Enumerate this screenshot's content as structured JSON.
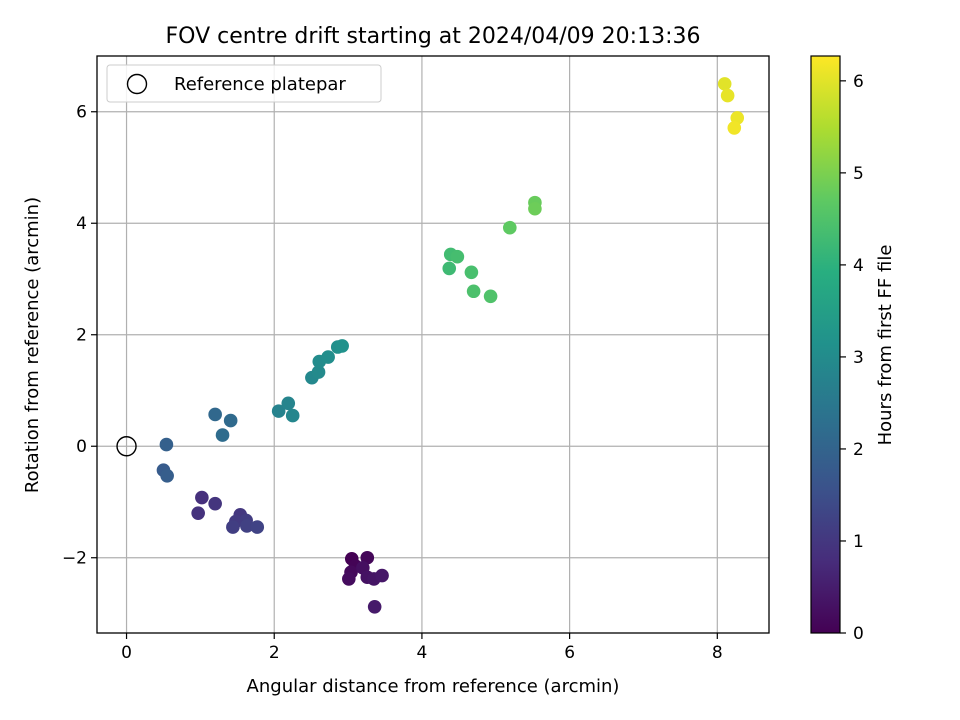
{
  "chart_data": {
    "type": "scatter",
    "title": "FOV centre drift starting at 2024/04/09 20:13:36",
    "xlabel": "Angular distance from reference (arcmin)",
    "ylabel": "Rotation from reference (arcmin)",
    "xlim": [
      -0.4,
      8.7
    ],
    "ylim": [
      -3.35,
      7.0
    ],
    "xticks": [
      "0",
      "2",
      "4",
      "6",
      "8"
    ],
    "xtick_values": [
      0,
      2,
      4,
      6,
      8
    ],
    "yticks": [
      "−2",
      "0",
      "2",
      "4",
      "6"
    ],
    "ytick_values": [
      -2,
      0,
      2,
      4,
      6
    ],
    "grid": true,
    "legend": {
      "placement": "top-left",
      "label": "Reference platepar"
    },
    "reference_point": {
      "x": 0,
      "y": 0
    },
    "colorbar": {
      "label": "Hours from first FF file",
      "range": [
        0,
        6.27
      ],
      "ticks": [
        "0",
        "1",
        "2",
        "3",
        "4",
        "5",
        "6"
      ],
      "tick_values": [
        0,
        1,
        2,
        3,
        4,
        5,
        6
      ],
      "colormap": "viridis"
    },
    "points": [
      {
        "x": 3.05,
        "y": -2.02,
        "c": 0.0
      },
      {
        "x": 3.1,
        "y": -2.15,
        "c": 0.05
      },
      {
        "x": 3.26,
        "y": -2.0,
        "c": 0.1
      },
      {
        "x": 3.04,
        "y": -2.26,
        "c": 0.15
      },
      {
        "x": 3.01,
        "y": -2.38,
        "c": 0.2
      },
      {
        "x": 3.2,
        "y": -2.18,
        "c": 0.25
      },
      {
        "x": 3.26,
        "y": -2.35,
        "c": 0.3
      },
      {
        "x": 3.35,
        "y": -2.38,
        "c": 0.35
      },
      {
        "x": 3.46,
        "y": -2.32,
        "c": 0.4
      },
      {
        "x": 3.36,
        "y": -2.88,
        "c": 0.45
      },
      {
        "x": 1.02,
        "y": -0.92,
        "c": 0.85
      },
      {
        "x": 0.97,
        "y": -1.2,
        "c": 0.9
      },
      {
        "x": 1.2,
        "y": -1.03,
        "c": 0.95
      },
      {
        "x": 1.54,
        "y": -1.23,
        "c": 1.0
      },
      {
        "x": 1.48,
        "y": -1.35,
        "c": 1.05
      },
      {
        "x": 1.62,
        "y": -1.33,
        "c": 1.1
      },
      {
        "x": 1.44,
        "y": -1.45,
        "c": 1.15
      },
      {
        "x": 1.63,
        "y": -1.43,
        "c": 1.2
      },
      {
        "x": 1.77,
        "y": -1.45,
        "c": 1.25
      },
      {
        "x": 0.5,
        "y": -0.43,
        "c": 1.8
      },
      {
        "x": 0.55,
        "y": -0.53,
        "c": 1.85
      },
      {
        "x": 0.54,
        "y": 0.03,
        "c": 1.9
      },
      {
        "x": 1.2,
        "y": 0.57,
        "c": 2.1
      },
      {
        "x": 1.41,
        "y": 0.46,
        "c": 2.15
      },
      {
        "x": 1.3,
        "y": 0.2,
        "c": 2.2
      },
      {
        "x": 2.06,
        "y": 0.63,
        "c": 2.75
      },
      {
        "x": 2.19,
        "y": 0.77,
        "c": 2.8
      },
      {
        "x": 2.25,
        "y": 0.55,
        "c": 2.85
      },
      {
        "x": 2.51,
        "y": 1.23,
        "c": 2.9
      },
      {
        "x": 2.6,
        "y": 1.33,
        "c": 2.95
      },
      {
        "x": 2.61,
        "y": 1.52,
        "c": 3.0
      },
      {
        "x": 2.73,
        "y": 1.6,
        "c": 3.05
      },
      {
        "x": 2.86,
        "y": 1.78,
        "c": 3.1
      },
      {
        "x": 2.92,
        "y": 1.8,
        "c": 3.15
      },
      {
        "x": 4.37,
        "y": 3.19,
        "c": 4.25
      },
      {
        "x": 4.39,
        "y": 3.44,
        "c": 4.3
      },
      {
        "x": 4.48,
        "y": 3.4,
        "c": 4.35
      },
      {
        "x": 4.67,
        "y": 3.12,
        "c": 4.4
      },
      {
        "x": 4.7,
        "y": 2.78,
        "c": 4.45
      },
      {
        "x": 4.93,
        "y": 2.69,
        "c": 4.5
      },
      {
        "x": 5.19,
        "y": 3.92,
        "c": 4.7
      },
      {
        "x": 5.53,
        "y": 4.37,
        "c": 4.8
      },
      {
        "x": 5.53,
        "y": 4.26,
        "c": 4.85
      },
      {
        "x": 8.1,
        "y": 6.5,
        "c": 6.0
      },
      {
        "x": 8.14,
        "y": 6.29,
        "c": 6.05
      },
      {
        "x": 8.27,
        "y": 5.89,
        "c": 6.1
      },
      {
        "x": 8.23,
        "y": 5.71,
        "c": 6.15
      }
    ]
  }
}
